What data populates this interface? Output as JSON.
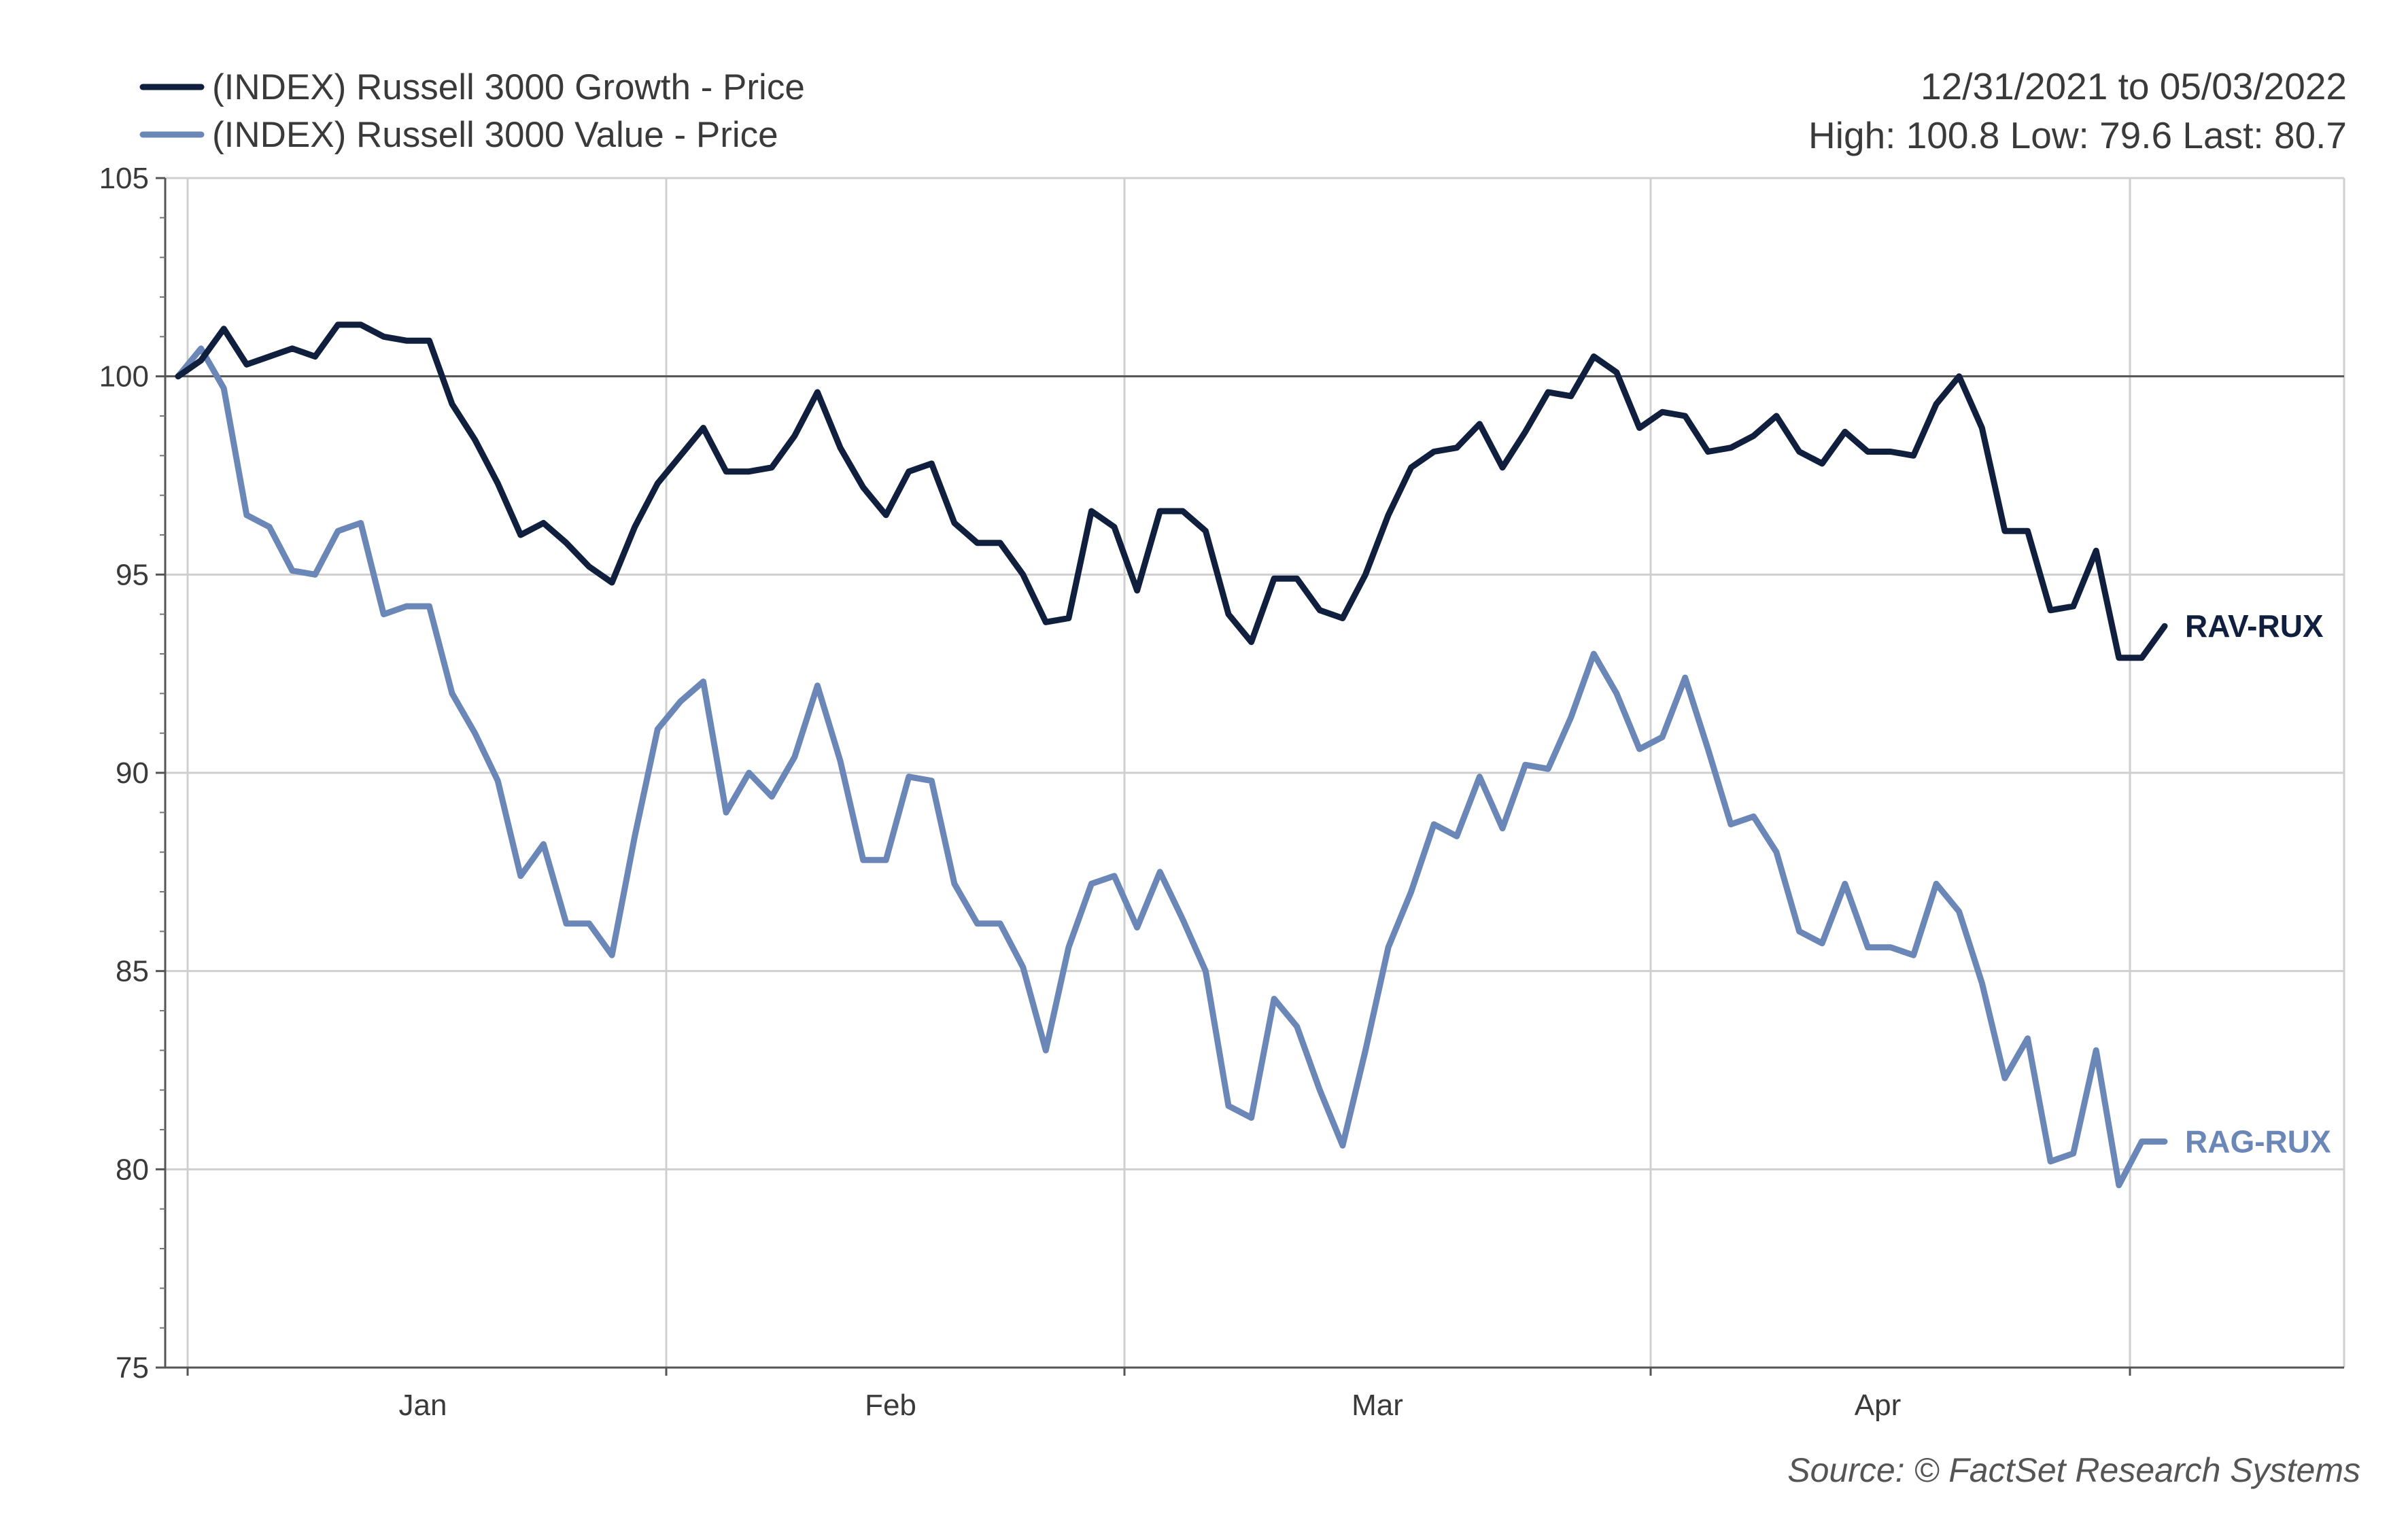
{
  "chart_data": {
    "type": "line",
    "info": {
      "date_range": "12/31/2021 to 05/03/2022",
      "stats": "High: 100.8  Low: 79.6  Last: 80.7"
    },
    "source": "Source: © FactSet Research Systems",
    "ylim": [
      75,
      105
    ],
    "y_ticks": [
      "105",
      "100",
      "95",
      "90",
      "85",
      "80",
      "75"
    ],
    "x_ticks": [
      "Jan",
      "Feb",
      "Mar",
      "Apr"
    ],
    "reference_line": 100,
    "grid": true,
    "legend_position": "top-left",
    "series": [
      {
        "name": "(INDEX) Russell 3000 Growth - Price",
        "end_label": "RAV-RUX",
        "color": "#0f1f3d",
        "values": [
          100.0,
          100.4,
          101.2,
          100.3,
          100.5,
          100.7,
          100.5,
          101.3,
          101.3,
          101.0,
          100.9,
          100.9,
          99.3,
          98.4,
          97.3,
          96.0,
          96.3,
          95.8,
          95.2,
          94.8,
          96.2,
          97.3,
          98.0,
          98.7,
          97.6,
          97.6,
          97.7,
          98.5,
          99.6,
          98.2,
          97.2,
          96.5,
          97.6,
          97.8,
          96.3,
          95.8,
          95.8,
          95.0,
          93.8,
          93.9,
          96.6,
          96.2,
          94.6,
          96.6,
          96.6,
          96.1,
          94.0,
          93.3,
          94.9,
          94.9,
          94.1,
          93.9,
          95.0,
          96.5,
          97.7,
          98.1,
          98.2,
          98.8,
          97.7,
          98.6,
          99.6,
          99.5,
          100.5,
          100.1,
          98.7,
          99.1,
          99.0,
          98.1,
          98.2,
          98.5,
          99.0,
          98.1,
          97.8,
          98.6,
          98.1,
          98.1,
          98.0,
          99.3,
          100.0,
          98.7,
          96.1,
          96.1,
          94.1,
          94.2,
          95.6,
          92.9,
          92.9,
          93.7
        ]
      },
      {
        "name": "(INDEX) Russell 3000 Value - Price",
        "end_label": "RAG-RUX",
        "color": "#6b87b8",
        "values": [
          100.0,
          100.7,
          99.7,
          96.5,
          96.2,
          95.1,
          95.0,
          96.1,
          96.3,
          94.0,
          94.2,
          94.2,
          92.0,
          91.0,
          89.8,
          87.4,
          88.2,
          86.2,
          86.2,
          85.4,
          88.4,
          91.1,
          91.8,
          92.3,
          89.0,
          90.0,
          89.4,
          90.4,
          92.2,
          90.3,
          87.8,
          87.8,
          89.9,
          89.8,
          87.2,
          86.2,
          86.2,
          85.1,
          83.0,
          85.6,
          87.2,
          87.4,
          86.1,
          87.5,
          86.3,
          85.0,
          81.6,
          81.3,
          84.3,
          83.6,
          82.0,
          80.6,
          83.0,
          85.6,
          87.0,
          88.7,
          88.4,
          89.9,
          88.6,
          90.2,
          90.1,
          91.4,
          93.0,
          92.0,
          90.6,
          90.9,
          92.4,
          90.6,
          88.7,
          88.9,
          88.0,
          86.0,
          85.7,
          87.2,
          85.6,
          85.6,
          85.4,
          87.2,
          86.5,
          84.7,
          82.3,
          83.3,
          80.2,
          80.4,
          83.0,
          79.6,
          80.7,
          80.7
        ]
      }
    ]
  }
}
